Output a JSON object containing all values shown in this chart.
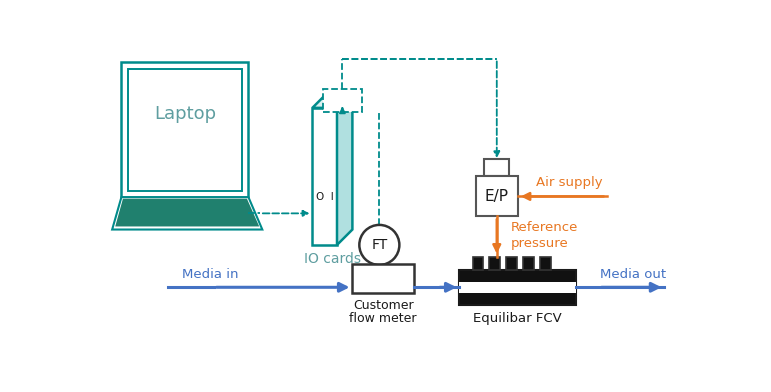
{
  "bg_color": "#ffffff",
  "teal": "#008B8B",
  "orange": "#E87722",
  "blue": "#4472C4",
  "dark": "#1a1a1a",
  "gray_dark": "#333333",
  "laptop_label": "Laptop",
  "io_label": "IO cards",
  "ft_label": "FT",
  "ep_label": "E/P",
  "customer_fm_label": [
    "Customer",
    "flow meter"
  ],
  "equilibar_label": "Equilibar FCV",
  "media_in_label": "Media in",
  "media_out_label": "Media out",
  "air_supply_label": "Air supply",
  "ref_pressure_label": [
    "Reference",
    "pressure"
  ],
  "figw": 7.71,
  "figh": 3.92,
  "dpi": 100
}
